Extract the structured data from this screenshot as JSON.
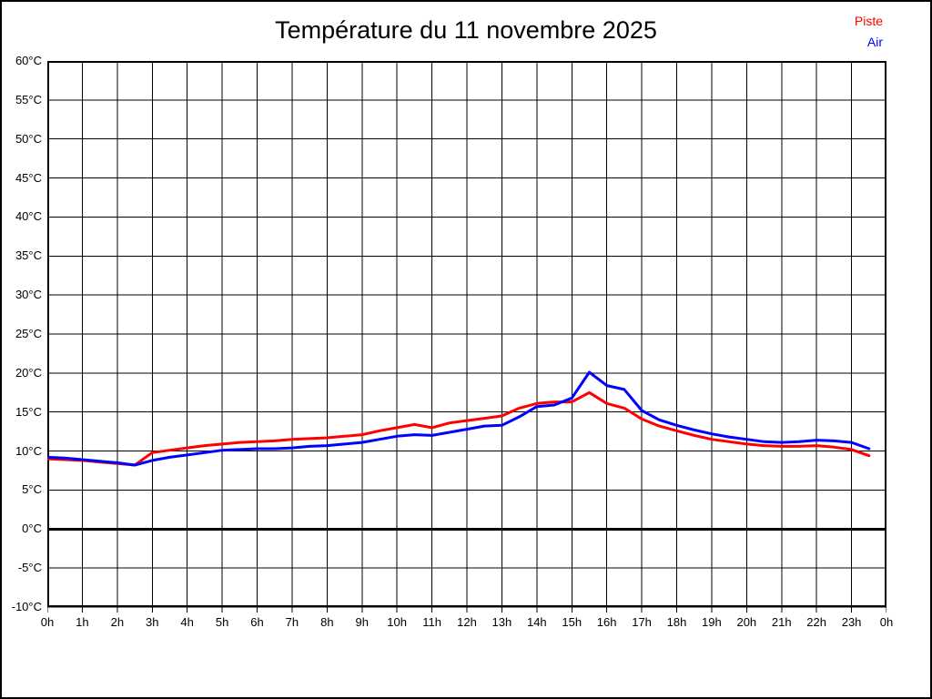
{
  "figure": {
    "background_color": "#ffffff",
    "border_color": "#000000"
  },
  "chart_data": {
    "type": "line",
    "title": "Température du 11 novembre 2025",
    "xlabel": "",
    "ylabel": "",
    "xlim": [
      0,
      24
    ],
    "ylim": [
      -10,
      60
    ],
    "grid": true,
    "grid_color": "#000000",
    "legend_position": "top-right",
    "zero_line": {
      "value": 0,
      "width": 3,
      "color": "#000000"
    },
    "x_ticks": {
      "values": [
        0,
        1,
        2,
        3,
        4,
        5,
        6,
        7,
        8,
        9,
        10,
        11,
        12,
        13,
        14,
        15,
        16,
        17,
        18,
        19,
        20,
        21,
        22,
        23,
        24
      ],
      "labels": [
        "0h",
        "1h",
        "2h",
        "3h",
        "4h",
        "5h",
        "6h",
        "7h",
        "8h",
        "9h",
        "10h",
        "11h",
        "12h",
        "13h",
        "14h",
        "15h",
        "16h",
        "17h",
        "18h",
        "19h",
        "20h",
        "21h",
        "22h",
        "23h",
        "0h"
      ]
    },
    "y_ticks": {
      "values": [
        60,
        55,
        50,
        45,
        40,
        35,
        30,
        25,
        20,
        15,
        10,
        5,
        0,
        -5,
        -10
      ],
      "labels": [
        "60°C",
        "55°C",
        "50°C",
        "45°C",
        "40°C",
        "35°C",
        "30°C",
        "25°C",
        "20°C",
        "15°C",
        "10°C",
        "5°C",
        "0°C",
        "-5°C",
        "-10°C"
      ]
    },
    "x": [
      0,
      0.5,
      1,
      1.5,
      2,
      2.5,
      3,
      3.5,
      4,
      4.5,
      5,
      5.5,
      6,
      6.5,
      7,
      7.5,
      8,
      8.5,
      9,
      9.5,
      10,
      10.5,
      11,
      11.5,
      12,
      12.5,
      13,
      13.5,
      14,
      14.5,
      15,
      15.5,
      16,
      16.5,
      17,
      17.5,
      18,
      18.5,
      19,
      19.5,
      20,
      20.5,
      21,
      21.5,
      22,
      22.5,
      23,
      23.5
    ],
    "series": [
      {
        "name": "Piste",
        "color": "#ff0000",
        "values": [
          9.0,
          8.9,
          8.8,
          8.6,
          8.4,
          8.2,
          9.8,
          10.1,
          10.4,
          10.7,
          10.9,
          11.1,
          11.2,
          11.3,
          11.5,
          11.6,
          11.7,
          11.9,
          12.1,
          12.6,
          13.0,
          13.4,
          13.0,
          13.6,
          13.9,
          14.2,
          14.5,
          15.5,
          16.1,
          16.3,
          16.3,
          17.5,
          16.1,
          15.5,
          14.1,
          13.2,
          12.6,
          12.0,
          11.5,
          11.2,
          10.9,
          10.7,
          10.6,
          10.6,
          10.7,
          10.5,
          10.2,
          9.4
        ]
      },
      {
        "name": "Air",
        "color": "#0000ff",
        "values": [
          9.2,
          9.1,
          8.9,
          8.7,
          8.5,
          8.2,
          8.8,
          9.2,
          9.5,
          9.8,
          10.1,
          10.2,
          10.3,
          10.3,
          10.4,
          10.6,
          10.7,
          10.9,
          11.1,
          11.5,
          11.9,
          12.1,
          12.0,
          12.4,
          12.8,
          13.2,
          13.3,
          14.4,
          15.7,
          15.9,
          16.8,
          20.1,
          18.4,
          17.9,
          15.2,
          14.0,
          13.3,
          12.7,
          12.2,
          11.8,
          11.5,
          11.2,
          11.1,
          11.2,
          11.4,
          11.3,
          11.1,
          10.3
        ]
      }
    ]
  }
}
